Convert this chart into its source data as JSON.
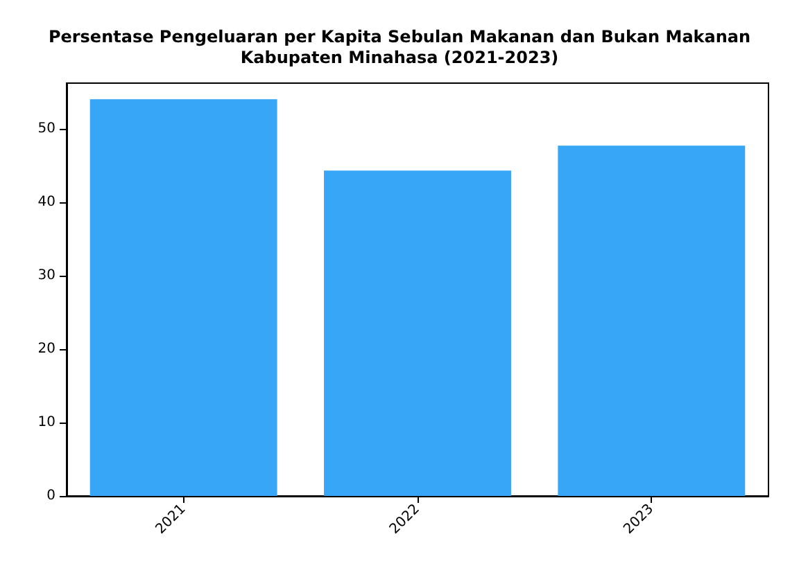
{
  "chart_data": {
    "type": "bar",
    "title": "Persentase Pengeluaran per Kapita Sebulan Makanan dan Bukan Makanan\nKabupaten Minahasa (2021-2023)",
    "categories": [
      "2021",
      "2022",
      "2023"
    ],
    "values": [
      54.0,
      44.3,
      47.7
    ],
    "color": "#38a6f6",
    "ylim": [
      0,
      56.2
    ],
    "yticks": [
      0,
      10,
      20,
      30,
      40,
      50
    ],
    "grid": false
  }
}
